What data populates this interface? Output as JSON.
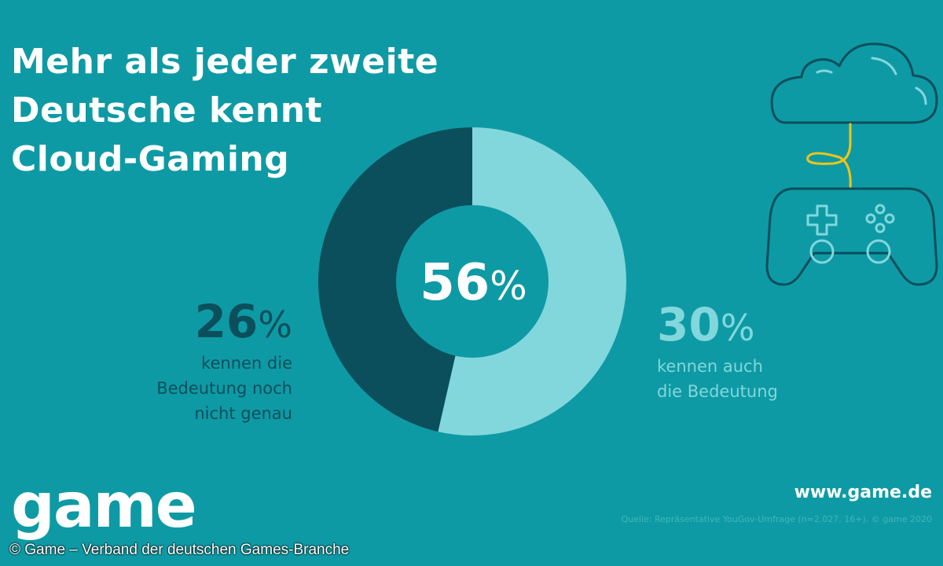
{
  "title_lines": [
    "Mehr als jeder zweite",
    "Deutsche kennt",
    "Cloud-Gaming"
  ],
  "chart_data": {
    "type": "pie",
    "total_label": "56",
    "total_unit": "%",
    "series": [
      {
        "name": "kennen die Bedeutung noch nicht genau",
        "value": 26,
        "label_number": "26",
        "unit": "%",
        "label_lines": [
          "kennen die",
          "Bedeutung noch",
          "nicht genau"
        ],
        "color": "#0b4f5c"
      },
      {
        "name": "kennen auch die Bedeutung",
        "value": 30,
        "label_number": "30",
        "unit": "%",
        "label_lines": [
          "kennen auch",
          "die Bedeutung"
        ],
        "color": "#82d7dc"
      }
    ]
  },
  "colors": {
    "background": "#0e9aa4",
    "dark": "#0b4f5c",
    "light": "#82d7dc",
    "cord": "#f0c419"
  },
  "icons": [
    "cloud-icon",
    "gamepad-icon"
  ],
  "logo_text": "game",
  "url": "www.game.de",
  "source": "Quelle: Repräsentative YouGov-Umfrage (n=2.027, 16+). © game 2020",
  "copyright": "© Game – Verband der deutschen Games-Branche"
}
